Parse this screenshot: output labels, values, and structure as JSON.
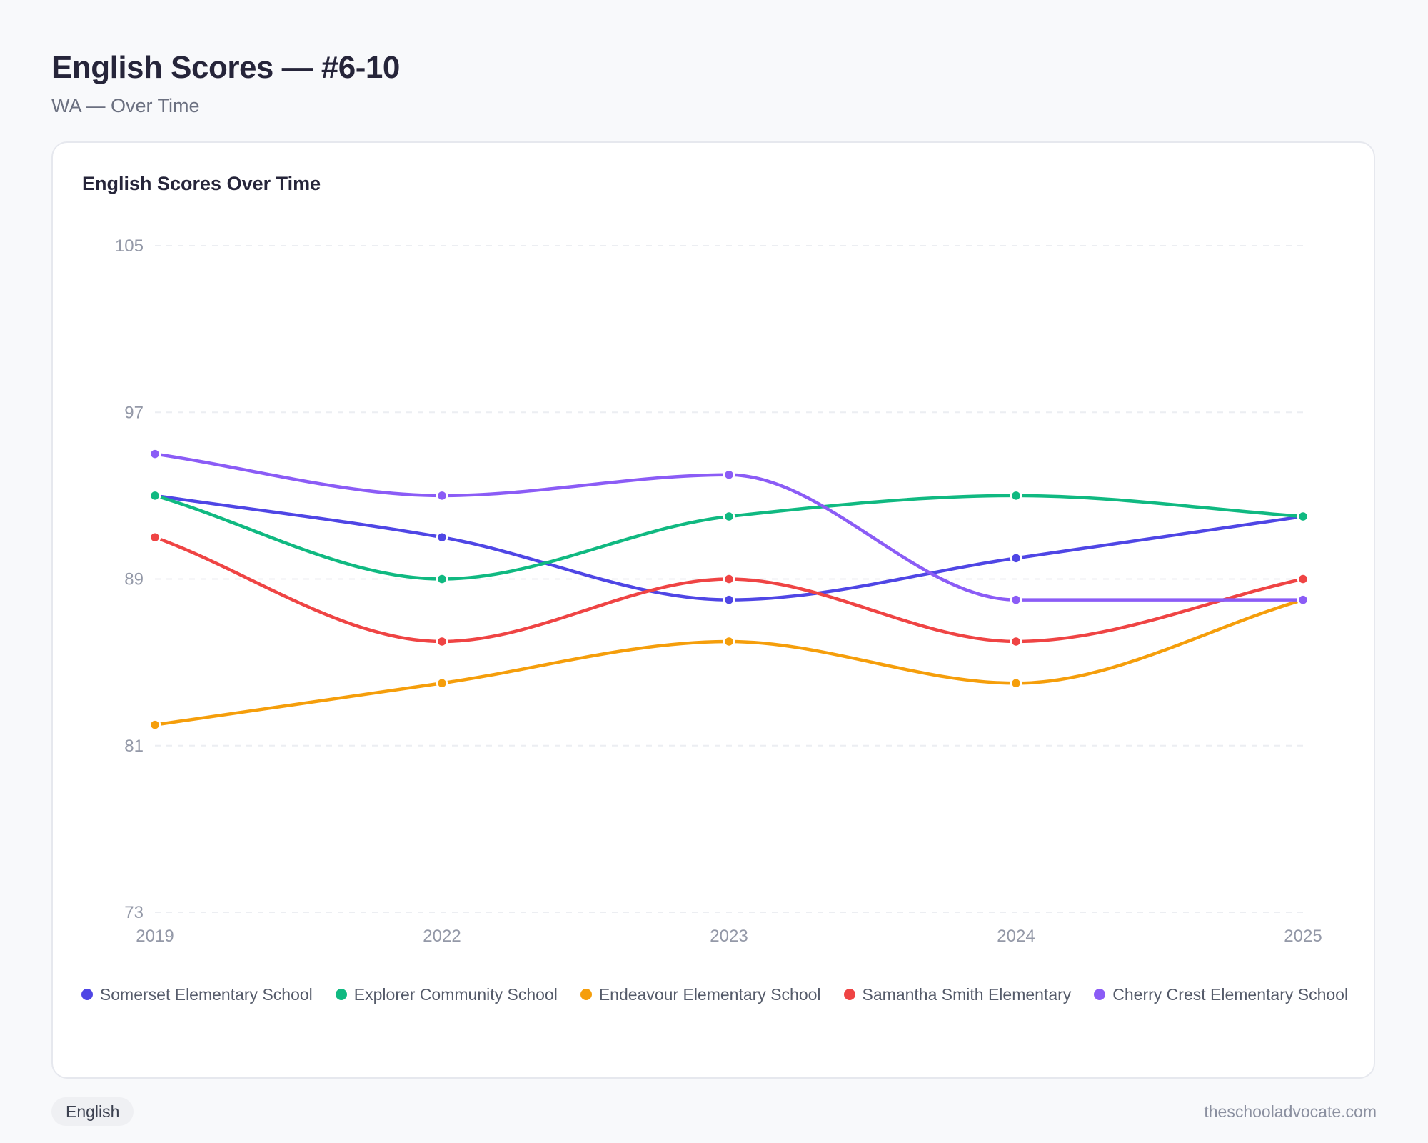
{
  "header": {
    "title": "English Scores — #6-10",
    "subtitle": "WA — Over Time"
  },
  "card": {
    "title": "English Scores Over Time"
  },
  "footer": {
    "badge": "English",
    "site": "theschooladvocate.com"
  },
  "chart_data": {
    "type": "line",
    "title": "English Scores Over Time",
    "xlabel": "",
    "ylabel": "",
    "categories": [
      "2019",
      "2022",
      "2023",
      "2024",
      "2025"
    ],
    "ylim": [
      73,
      105
    ],
    "yticks": [
      73,
      81,
      89,
      97,
      105
    ],
    "grid": true,
    "smooth": true,
    "legend_position": "bottom",
    "series": [
      {
        "name": "Somerset Elementary School",
        "color": "#4f46e5",
        "values": [
          93,
          91,
          88,
          90,
          92
        ]
      },
      {
        "name": "Explorer Community School",
        "color": "#10b981",
        "values": [
          93,
          89,
          92,
          93,
          92
        ]
      },
      {
        "name": "Endeavour Elementary School",
        "color": "#f59e0b",
        "values": [
          82,
          84,
          86,
          84,
          88
        ]
      },
      {
        "name": "Samantha Smith Elementary",
        "color": "#ef4444",
        "values": [
          91,
          86,
          89,
          86,
          89
        ]
      },
      {
        "name": "Cherry Crest Elementary School",
        "color": "#8b5cf6",
        "values": [
          95,
          93,
          94,
          88,
          88
        ]
      }
    ]
  }
}
